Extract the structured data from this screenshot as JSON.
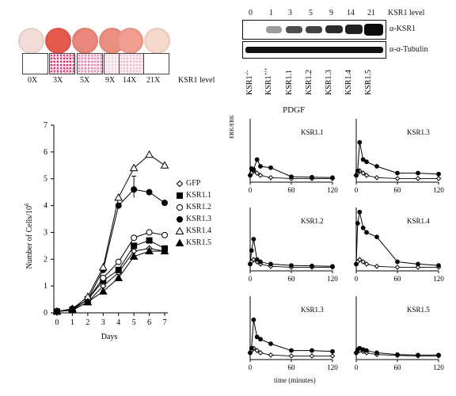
{
  "figure_top": {
    "ksr1_level_labels": [
      "0X",
      "3X",
      "5X",
      "9X",
      "14X",
      "21X"
    ],
    "ksr1_level_axis_title": "KSR1  level",
    "dish_colors": [
      "#f2ded9",
      "#e45a4d",
      "#e9877c",
      "#eb907f",
      "#ef9e8f",
      "#f5d9cd"
    ],
    "stain_densities": [
      0,
      0.9,
      0.5,
      0.15,
      0.25,
      0.0
    ]
  },
  "western": {
    "top_numbers": [
      "0",
      "1",
      "3",
      "5",
      "9",
      "14",
      "21"
    ],
    "level_label": "KSR1 level",
    "band_labels": [
      "α-KSR1",
      "α-α-Tubulin"
    ],
    "lane_labels": [
      "KSR1-/-",
      "KSR1+/+",
      "KSR1.1",
      "KSR1.2",
      "KSR1.3",
      "KSR1.4",
      "KSR1.5"
    ],
    "ksr1_band_intensity": [
      0.0,
      0.35,
      0.7,
      0.75,
      0.85,
      0.9,
      1.0
    ]
  },
  "growth_chart": {
    "ylabel": "Number of Cells/10",
    "ylabel_sup": "6",
    "xlabel": "Days",
    "legend": [
      "GFP",
      "KSR1.1",
      "KSR1.2",
      "KSR1.3",
      "KSR1.4",
      "KSR1.5"
    ]
  },
  "kinetics": {
    "title": "PDGF",
    "ylabel": "ERK/ERK",
    "xlabel": "time (minutes)",
    "panel_labels": [
      "KSR1.1",
      "KSR1.3",
      "KSR1.2",
      "KSR1.4",
      "KSR1.3",
      "KSR1.5"
    ]
  },
  "chart_data": [
    {
      "type": "line",
      "title": "",
      "xlabel": "Days",
      "ylabel": "Number of Cells/10^6",
      "xlim": [
        0,
        7
      ],
      "ylim": [
        0,
        7
      ],
      "x": [
        0,
        1,
        2,
        3,
        4,
        5,
        6,
        7
      ],
      "series": [
        {
          "name": "GFP",
          "marker": "diamond-open",
          "values": [
            0.05,
            0.1,
            0.4,
            1.0,
            1.5,
            2.3,
            2.4,
            2.3
          ]
        },
        {
          "name": "KSR1.1",
          "marker": "square-filled",
          "values": [
            0.05,
            0.12,
            0.5,
            1.2,
            1.6,
            2.5,
            2.7,
            2.4
          ]
        },
        {
          "name": "KSR1.2",
          "marker": "circle-open",
          "values": [
            0.05,
            0.15,
            0.5,
            1.3,
            1.9,
            2.8,
            3.0,
            2.9
          ]
        },
        {
          "name": "KSR1.3",
          "marker": "circle-filled",
          "values": [
            0.05,
            0.12,
            0.5,
            1.6,
            4.0,
            4.6,
            4.5,
            4.1
          ]
        },
        {
          "name": "KSR1.4",
          "marker": "triangle-open",
          "values": [
            0.05,
            0.15,
            0.6,
            1.7,
            4.3,
            5.4,
            5.9,
            5.5
          ]
        },
        {
          "name": "KSR1.5",
          "marker": "triangle-filled",
          "values": [
            0.05,
            0.1,
            0.4,
            0.8,
            1.3,
            2.1,
            2.3,
            2.3
          ]
        }
      ]
    },
    {
      "type": "line",
      "title": "PDGF",
      "panels": [
        {
          "label": "KSR1.1",
          "x": [
            0,
            2,
            5,
            10,
            15,
            30,
            60,
            90,
            120
          ],
          "filled": [
            1.5,
            3.0,
            2.8,
            5.0,
            3.5,
            3.2,
            1.2,
            1.1,
            1.0
          ],
          "open": [
            1.5,
            2.0,
            2.5,
            2.0,
            1.5,
            1.0,
            0.8,
            0.8,
            0.8
          ]
        },
        {
          "label": "KSR1.3",
          "x": [
            0,
            2,
            5,
            10,
            15,
            30,
            60,
            90,
            120
          ],
          "filled": [
            1.5,
            2.5,
            8.8,
            5.0,
            4.5,
            3.5,
            2.0,
            2.0,
            1.8
          ],
          "open": [
            1.5,
            2.0,
            2.5,
            2.0,
            1.5,
            1.0,
            0.8,
            0.8,
            0.8
          ]
        },
        {
          "label": "KSR1.2",
          "x": [
            0,
            2,
            5,
            10,
            15,
            30,
            60,
            90,
            120
          ],
          "filled": [
            1.5,
            4.5,
            7.0,
            2.5,
            2.0,
            1.5,
            1.2,
            1.1,
            1.0
          ],
          "open": [
            1.5,
            2.0,
            2.5,
            2.0,
            1.5,
            1.0,
            0.8,
            0.8,
            0.8
          ]
        },
        {
          "label": "KSR1.4",
          "x": [
            0,
            2,
            5,
            10,
            15,
            30,
            60,
            90,
            120
          ],
          "filled": [
            1.5,
            10.5,
            13.0,
            9.5,
            8.5,
            7.5,
            2.0,
            1.5,
            1.2
          ],
          "open": [
            1.5,
            2.0,
            2.5,
            2.0,
            1.5,
            1.0,
            0.8,
            0.8,
            0.8
          ]
        },
        {
          "label": "KSR1.3",
          "x": [
            0,
            2,
            5,
            10,
            15,
            30,
            60,
            90,
            120
          ],
          "filled": [
            1.5,
            2.5,
            8.8,
            5.0,
            4.5,
            3.5,
            2.0,
            2.0,
            1.8
          ],
          "open": [
            1.5,
            2.0,
            2.5,
            2.0,
            1.5,
            1.0,
            0.8,
            0.8,
            0.8
          ]
        },
        {
          "label": "KSR1.5",
          "x": [
            0,
            2,
            5,
            10,
            15,
            30,
            60,
            90,
            120
          ],
          "filled": [
            1.5,
            2.2,
            2.5,
            2.2,
            2.0,
            1.5,
            1.1,
            1.0,
            1.0
          ],
          "open": [
            1.5,
            1.8,
            2.0,
            1.8,
            1.5,
            1.1,
            0.9,
            0.8,
            0.8
          ]
        }
      ],
      "xlim": [
        0,
        120
      ],
      "xticks": [
        0,
        60,
        120
      ],
      "xlabel": "time (minutes)"
    }
  ]
}
